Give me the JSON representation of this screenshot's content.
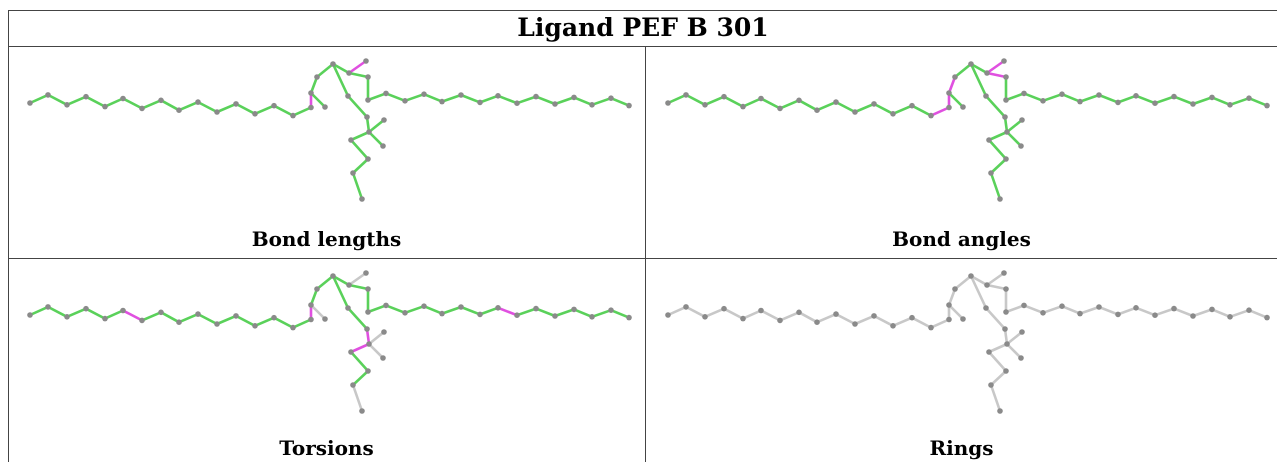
{
  "title": "Ligand PEF B 301",
  "panels": [
    {
      "caption": "Bond lengths",
      "scheme": "lengths"
    },
    {
      "caption": "Bond angles",
      "scheme": "angles"
    },
    {
      "caption": "Torsions",
      "scheme": "torsions"
    },
    {
      "caption": "Rings",
      "scheme": "rings"
    }
  ],
  "colors": {
    "ok_bond": "#5ad15a",
    "outlier_bond": "#e050e0",
    "neutral_bond": "#c8c8c8",
    "atom": "#8a8a8a",
    "border": "#444444"
  }
}
